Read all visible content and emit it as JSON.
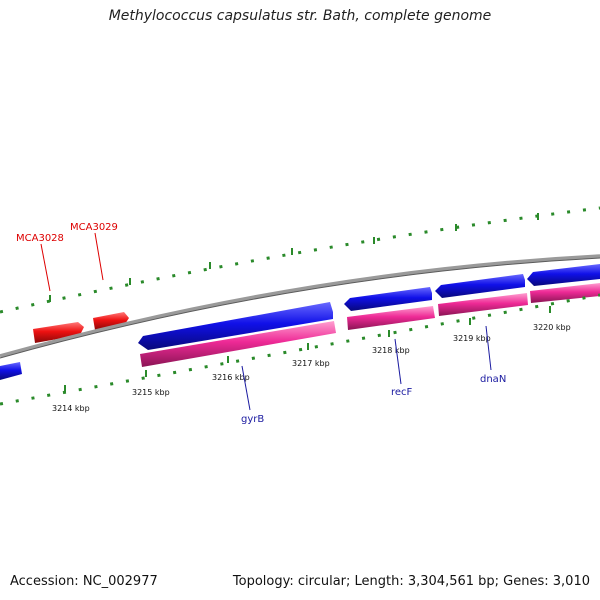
{
  "title": "Methylococcus capsulatus str. Bath, complete genome",
  "footer": {
    "accession": "Accession: NC_002977",
    "summary": "Topology: circular; Length: 3,304,561 bp; Genes: 3,010"
  },
  "colors": {
    "forward_cds": "#1010e8",
    "reverse_cds": "#ee2a96",
    "highlight": "#ee1111",
    "backbone": "#8a8a8a",
    "ticks": "#2a8a2a",
    "gene_label": "#1a1aa0",
    "highlight_label": "#dd0000"
  },
  "scale_labels": [
    "3214 kbp",
    "3215 kbp",
    "3216 kbp",
    "3217 kbp",
    "3218 kbp",
    "3219 kbp",
    "3220 kbp"
  ],
  "gene_labels": [
    {
      "text": "gyrB",
      "group": "blue"
    },
    {
      "text": "recF",
      "group": "blue"
    },
    {
      "text": "dnaN",
      "group": "blue"
    },
    {
      "text": "MCA3028",
      "group": "red"
    },
    {
      "text": "MCA3029",
      "group": "red"
    }
  ]
}
